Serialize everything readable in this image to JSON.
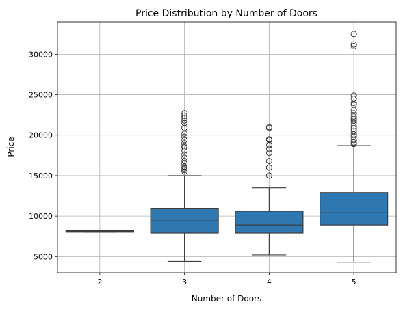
{
  "chart_data": {
    "type": "box",
    "title": "Price Distribution by Number of Doors",
    "xlabel": "Number of Doors",
    "ylabel": "Price",
    "ylim": [
      3000,
      34000
    ],
    "yticks": [
      5000,
      10000,
      15000,
      20000,
      25000,
      30000
    ],
    "grid": true,
    "box_color": "#2e77b0",
    "line_color": "#3d3d3d",
    "categories": [
      "2",
      "3",
      "4",
      "5"
    ],
    "boxes": [
      {
        "category": "2",
        "whisker_low": 8000,
        "q1": 8000,
        "median": 8100,
        "q3": 8200,
        "whisker_high": 8200,
        "fliers": []
      },
      {
        "category": "3",
        "whisker_low": 4400,
        "q1": 7900,
        "median": 9400,
        "q3": 10900,
        "whisker_high": 15000,
        "fliers": [
          15500,
          15700,
          15900,
          16100,
          16500,
          16800,
          17200,
          17600,
          18100,
          18500,
          18700,
          19000,
          19400,
          19800,
          20200,
          20900,
          21500,
          21800,
          22100,
          22400,
          22700
        ]
      },
      {
        "category": "4",
        "whisker_low": 5200,
        "q1": 7900,
        "median": 8900,
        "q3": 10600,
        "whisker_high": 13500,
        "fliers": [
          15000,
          16000,
          16800,
          17800,
          18300,
          18800,
          19400,
          19500,
          20900,
          21000
        ]
      },
      {
        "category": "5",
        "whisker_low": 4300,
        "q1": 8900,
        "median": 10400,
        "q3": 12900,
        "whisker_high": 18700,
        "fliers": [
          18900,
          19100,
          19400,
          19800,
          20100,
          20500,
          20800,
          21100,
          21500,
          21800,
          22000,
          22300,
          22700,
          23100,
          23800,
          24000,
          24500,
          24900,
          31000,
          31200,
          32500
        ]
      }
    ]
  }
}
